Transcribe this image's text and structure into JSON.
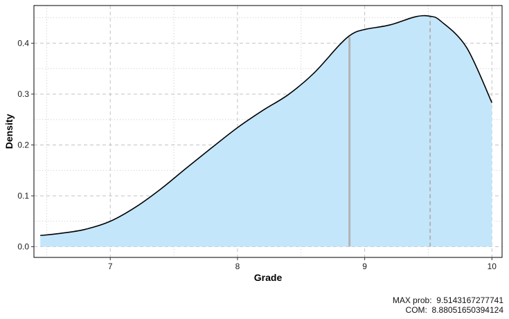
{
  "chart_data": {
    "type": "area",
    "xlabel": "Grade",
    "ylabel": "Density",
    "xlim": [
      6.4,
      10.08
    ],
    "ylim": [
      -0.021,
      0.474
    ],
    "x_ticks": [
      7,
      8,
      9,
      10
    ],
    "y_ticks": [
      0.0,
      0.1,
      0.2,
      0.3,
      0.4
    ],
    "y_tick_labels": [
      "0.0",
      "0.1",
      "0.2",
      "0.3",
      "0.4"
    ],
    "grid": true,
    "fill_color": "#c4e6fb",
    "line_color": "#000000",
    "x": [
      6.45,
      6.6,
      6.8,
      7.0,
      7.2,
      7.4,
      7.6,
      7.8,
      8.0,
      8.2,
      8.4,
      8.6,
      8.8,
      8.9,
      9.0,
      9.2,
      9.4,
      9.514,
      9.6,
      9.8,
      10.0
    ],
    "y": [
      0.022,
      0.026,
      0.034,
      0.05,
      0.078,
      0.114,
      0.155,
      0.195,
      0.234,
      0.268,
      0.299,
      0.341,
      0.396,
      0.418,
      0.427,
      0.436,
      0.452,
      0.453,
      0.443,
      0.392,
      0.283
    ],
    "markers": [
      {
        "name": "COM",
        "x": 8.88051650394124,
        "style": "solid",
        "color": "#b3b3b3"
      },
      {
        "name": "MAX prob",
        "x": 9.5143167277741,
        "style": "dashed",
        "color": "#b3b3b3"
      }
    ]
  },
  "caption": {
    "max_prob_label": "MAX prob:",
    "max_prob_value": "9.5143167277741",
    "com_label": "COM:",
    "com_value": "8.88051650394124"
  }
}
